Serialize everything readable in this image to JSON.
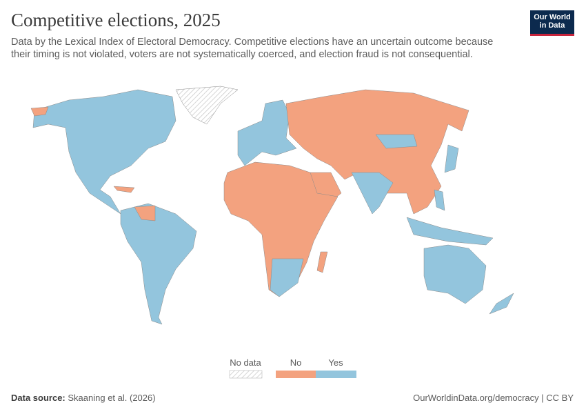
{
  "header": {
    "title": "Competitive elections, 2025",
    "subtitle": "Data by the Lexical Index of Electoral Democracy. Competitive elections have an uncertain outcome because their timing is not violated, voters are not systematically coerced, and election fraud is not consequential.",
    "logo": "Our World in Data"
  },
  "legend": {
    "items": [
      {
        "label": "No data"
      },
      {
        "label": "No",
        "color": "#f3a27f"
      },
      {
        "label": "Yes",
        "color": "#93c5dd"
      }
    ]
  },
  "footer": {
    "source_label": "Data source:",
    "source": "Skaaning et al. (2026)",
    "credit": "OurWorldinData.org/democracy | CC BY"
  }
}
